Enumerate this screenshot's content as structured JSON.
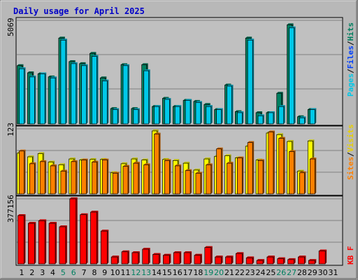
{
  "chart_data": [
    {
      "type": "bar",
      "title": "Daily usage for April 2025",
      "ymax_label": "5069",
      "ylim": [
        0,
        5069
      ],
      "side_labels": [
        {
          "text": "Hits",
          "color": "#008060"
        },
        {
          "text": "/",
          "color": "#000000"
        },
        {
          "text": "Files",
          "color": "#0040ff"
        },
        {
          "text": "/",
          "color": "#000000"
        },
        {
          "text": "Pages",
          "color": "#00c8e8"
        }
      ],
      "categories": [
        "1",
        "2",
        "3",
        "4",
        "5",
        "6",
        "7",
        "8",
        "9",
        "10",
        "11",
        "12",
        "13",
        "14",
        "15",
        "16",
        "17",
        "18",
        "19",
        "20",
        "21",
        "22",
        "23",
        "24",
        "25",
        "26",
        "27",
        "28",
        "29",
        "30",
        "31"
      ],
      "weekend_days": [
        "5",
        "6",
        "12",
        "13",
        "19",
        "20",
        "26",
        "27"
      ],
      "series": [
        {
          "name": "Hits",
          "color": "#008060",
          "values": [
            2850,
            2500,
            2450,
            2300,
            4200,
            3050,
            2950,
            3450,
            2250,
            750,
            2900,
            750,
            2900,
            850,
            1250,
            850,
            1150,
            1100,
            950,
            700,
            1900,
            600,
            4200,
            550,
            550,
            1500,
            4850,
            350,
            700,
            0,
            0
          ]
        },
        {
          "name": "Pages",
          "color": "#00c8e8",
          "values": [
            2700,
            2300,
            2450,
            2250,
            4100,
            2950,
            2850,
            3300,
            2100,
            700,
            2850,
            700,
            2600,
            850,
            1200,
            850,
            1150,
            1050,
            850,
            700,
            1850,
            550,
            4100,
            400,
            550,
            850,
            4700,
            300,
            700,
            0,
            0
          ]
        }
      ]
    },
    {
      "type": "bar",
      "ymax_label": "123",
      "ylim": [
        0,
        123
      ],
      "side_labels": [
        {
          "text": "Visits",
          "color": "#e8d000"
        },
        {
          "text": "/",
          "color": "#000000"
        },
        {
          "text": "Sites",
          "color": "#ff8000"
        }
      ],
      "series": [
        {
          "name": "Visits",
          "color": "#ffff00",
          "values": [
            77,
            70,
            76,
            60,
            55,
            66,
            64,
            65,
            65,
            40,
            57,
            66,
            64,
            119,
            65,
            63,
            58,
            45,
            66,
            71,
            72,
            68,
            90,
            64,
            115,
            112,
            99,
            43,
            100,
            0,
            0
          ]
        },
        {
          "name": "Sites",
          "color": "#ff8000",
          "values": [
            81,
            57,
            61,
            53,
            43,
            61,
            64,
            60,
            64,
            39,
            52,
            58,
            55,
            113,
            63,
            53,
            44,
            39,
            55,
            85,
            58,
            68,
            97,
            63,
            117,
            105,
            80,
            40,
            66,
            0,
            0
          ]
        }
      ]
    },
    {
      "type": "bar",
      "ymax_label": "377156",
      "ylim": [
        0,
        377156
      ],
      "side_labels": [
        {
          "text": "KB F",
          "color": "#ff0000"
        }
      ],
      "series": [
        {
          "name": "KB F",
          "color": "#ff0000",
          "values": [
            280000,
            235000,
            250000,
            235000,
            215000,
            377156,
            285000,
            300000,
            190000,
            40000,
            70000,
            65000,
            85000,
            55000,
            50000,
            65000,
            65000,
            50000,
            95000,
            40000,
            40000,
            60000,
            35000,
            20000,
            40000,
            30000,
            25000,
            40000,
            20000,
            75000,
            0
          ]
        }
      ]
    }
  ]
}
